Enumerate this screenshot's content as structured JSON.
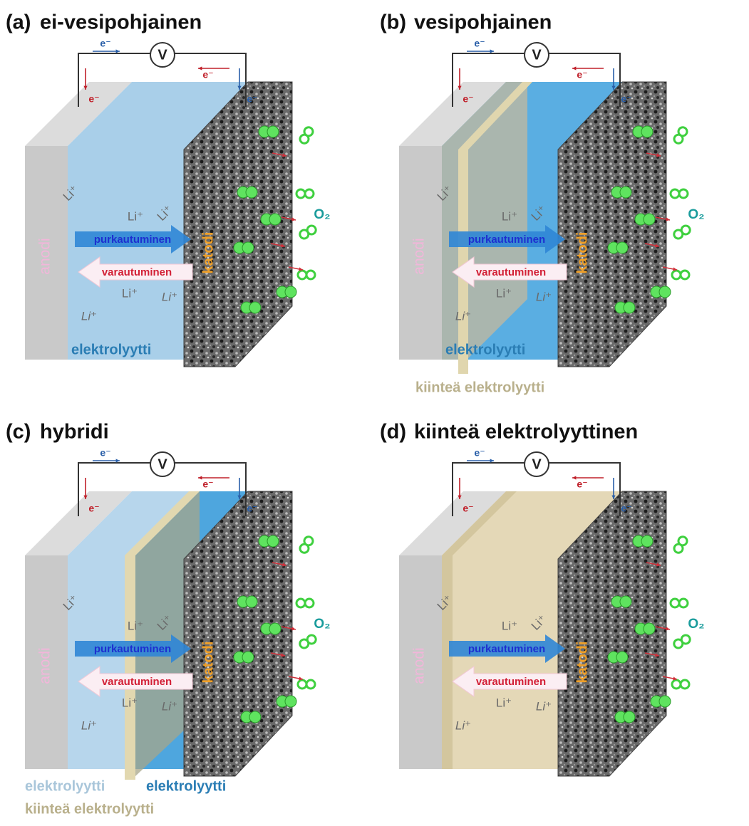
{
  "panels": [
    {
      "label": "(a)",
      "title": "ei-vesipohjainen",
      "voltmeter": "V",
      "electron_labels": [
        "e⁻",
        "e⁻",
        "e⁻",
        "e⁻"
      ],
      "anode": "anodi",
      "cathode": "katodi",
      "li_ions": [
        "Li⁺",
        "Li⁺",
        "Li⁺",
        "Li⁺",
        "Li⁺",
        "Li⁺"
      ],
      "discharge": "purkautuminen",
      "charge": "varautuminen",
      "oxygen": "O₂",
      "electrolytes": [
        "elektrolyytti"
      ]
    },
    {
      "label": "(b)",
      "title": "vesipohjainen",
      "voltmeter": "V",
      "electron_labels": [
        "e⁻",
        "e⁻",
        "e⁻",
        "e⁻"
      ],
      "anode": "anodi",
      "cathode": "katodi",
      "li_ions": [
        "Li⁺",
        "Li⁺",
        "Li⁺",
        "Li⁺",
        "Li⁺",
        "Li⁺"
      ],
      "discharge": "purkautuminen",
      "charge": "varautuminen",
      "oxygen": "O₂",
      "electrolytes": [
        "elektrolyytti",
        "kiinteä elektrolyytti"
      ]
    },
    {
      "label": "(c)",
      "title": "hybridi",
      "voltmeter": "V",
      "electron_labels": [
        "e⁻",
        "e⁻",
        "e⁻",
        "e⁻"
      ],
      "anode": "anodi",
      "cathode": "katodi",
      "li_ions": [
        "Li⁺",
        "Li⁺",
        "Li⁺",
        "Li⁺",
        "Li⁺",
        "Li⁺"
      ],
      "discharge": "purkautuminen",
      "charge": "varautuminen",
      "oxygen": "O₂",
      "electrolytes": [
        "elektrolyytti",
        "elektrolyytti",
        "kiinteä elektrolyytti"
      ]
    },
    {
      "label": "(d)",
      "title": "kiinteä elektrolyyttinen",
      "voltmeter": "V",
      "electron_labels": [
        "e⁻",
        "e⁻",
        "e⁻",
        "e⁻"
      ],
      "anode": "anodi",
      "cathode": "katodi",
      "li_ions": [
        "Li⁺",
        "Li⁺",
        "Li⁺",
        "Li⁺",
        "Li⁺",
        "Li⁺"
      ],
      "discharge": "purkautuminen",
      "charge": "varautuminen",
      "oxygen": "O₂"
    }
  ]
}
